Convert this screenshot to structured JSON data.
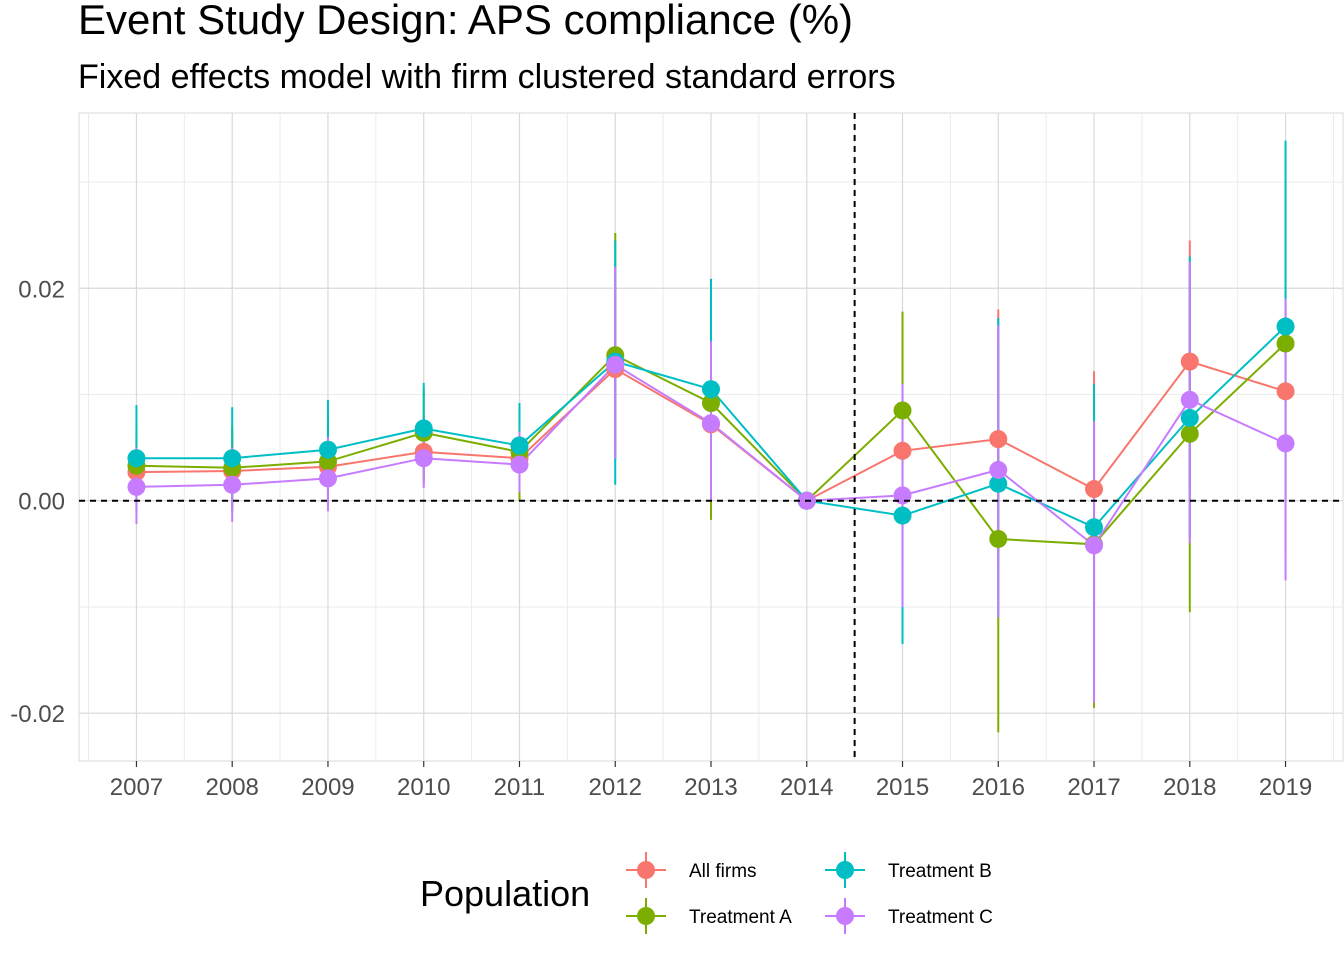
{
  "chart_data": {
    "type": "line",
    "title": "Event Study Design: APS compliance (%)",
    "subtitle": "Fixed effects model with firm clustered standard errors",
    "x": [
      2007,
      2008,
      2009,
      2010,
      2011,
      2012,
      2013,
      2014,
      2015,
      2016,
      2017,
      2018,
      2019
    ],
    "x_tick_labels": [
      "2007",
      "2008",
      "2009",
      "2010",
      "2011",
      "2012",
      "2013",
      "2014",
      "2015",
      "2016",
      "2017",
      "2018",
      "2019"
    ],
    "y_ticks": [
      -0.02,
      0.0,
      0.02
    ],
    "y_tick_labels": [
      "-0.02",
      "0.00",
      "0.02"
    ],
    "ylim": [
      -0.0245,
      0.0365
    ],
    "reference_lines": {
      "hline_y": 0.0,
      "vline_x": 2014.5
    },
    "grid": true,
    "legend": {
      "title": "Population",
      "position": "bottom"
    },
    "series": [
      {
        "name": "All firms",
        "color": "#F8766D",
        "values": [
          0.0027,
          0.0028,
          0.0032,
          0.0046,
          0.004,
          0.0124,
          0.0072,
          0.0,
          0.0047,
          0.0058,
          0.0011,
          0.0131,
          0.0103
        ],
        "lower": [
          -0.0012,
          -0.001,
          0.0,
          0.0015,
          0.0005,
          0.0045,
          -0.001,
          0.0,
          -0.007,
          -0.006,
          -0.01,
          0.001,
          -0.005
        ],
        "upper": [
          0.006,
          0.006,
          0.007,
          0.008,
          0.008,
          0.02,
          0.014,
          0.0,
          0.016,
          0.018,
          0.0122,
          0.0245,
          0.025
        ]
      },
      {
        "name": "Treatment A",
        "color": "#7CAE00",
        "values": [
          0.0033,
          0.0031,
          0.0037,
          0.0064,
          0.0046,
          0.0137,
          0.0092,
          0.0,
          0.0085,
          -0.0036,
          -0.0041,
          0.0063,
          0.0148
        ],
        "lower": [
          -0.001,
          -0.001,
          -0.0005,
          0.002,
          0.0,
          0.004,
          -0.0018,
          0.0,
          -0.001,
          -0.0218,
          -0.0195,
          -0.0105,
          0.0
        ],
        "upper": [
          0.007,
          0.007,
          0.008,
          0.0105,
          0.009,
          0.0252,
          0.019,
          0.0,
          0.0178,
          0.015,
          0.01,
          0.021,
          0.03
        ]
      },
      {
        "name": "Treatment B",
        "color": "#00BFC4",
        "values": [
          0.004,
          0.004,
          0.0048,
          0.0068,
          0.0052,
          0.0131,
          0.0105,
          0.0,
          -0.0014,
          0.0016,
          -0.0025,
          0.0078,
          0.0164
        ],
        "lower": [
          -0.0005,
          -0.0005,
          0.0,
          0.003,
          0.0015,
          0.0015,
          0.001,
          0.0,
          -0.0135,
          -0.011,
          -0.016,
          -0.0035,
          0.0
        ],
        "upper": [
          0.009,
          0.0088,
          0.0095,
          0.0111,
          0.0092,
          0.0245,
          0.0209,
          0.0,
          0.011,
          0.0172,
          0.011,
          0.023,
          0.0339
        ]
      },
      {
        "name": "Treatment C",
        "color": "#C77CFF",
        "values": [
          0.0013,
          0.0015,
          0.0021,
          0.004,
          0.0034,
          0.0128,
          0.0073,
          0.0,
          0.0005,
          0.0029,
          -0.0042,
          0.0095,
          0.0054
        ],
        "lower": [
          -0.0022,
          -0.002,
          -0.001,
          0.0012,
          0.0008,
          0.004,
          0.0,
          0.0,
          -0.01,
          -0.011,
          -0.019,
          -0.004,
          -0.0075
        ],
        "upper": [
          0.005,
          0.005,
          0.006,
          0.0075,
          0.0065,
          0.022,
          0.015,
          0.0,
          0.011,
          0.0165,
          0.0075,
          0.0225,
          0.019
        ]
      }
    ]
  }
}
